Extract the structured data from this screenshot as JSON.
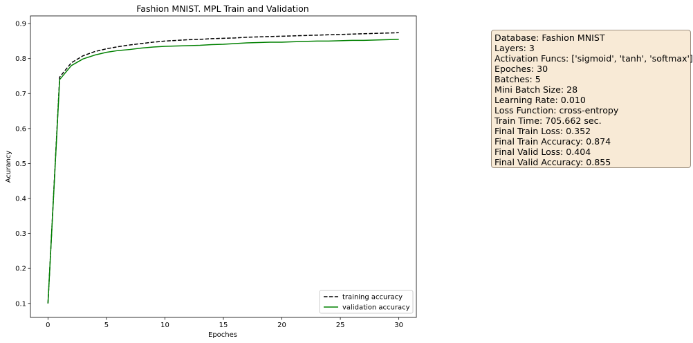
{
  "chart_data": {
    "type": "line",
    "title": "Fashion MNIST. MPL Train and Validation",
    "xlabel": "Epoches",
    "ylabel": "Acurancy",
    "xlim": [
      -1.5,
      31.5
    ],
    "ylim": [
      0.06,
      0.922
    ],
    "xticks": [
      0,
      5,
      10,
      15,
      20,
      25,
      30
    ],
    "yticks": [
      0.1,
      0.2,
      0.3,
      0.4,
      0.5,
      0.6,
      0.7,
      0.8,
      0.9
    ],
    "grid": false,
    "legend_position": "lower-right",
    "x": [
      0,
      1,
      2,
      3,
      4,
      5,
      6,
      7,
      8,
      9,
      10,
      11,
      12,
      13,
      14,
      15,
      16,
      17,
      18,
      19,
      20,
      21,
      22,
      23,
      24,
      25,
      26,
      27,
      28,
      29,
      30
    ],
    "series": [
      {
        "name": "training accuracy",
        "color": "#000000",
        "linestyle": "dashed",
        "values": [
          0.1,
          0.747,
          0.788,
          0.808,
          0.82,
          0.828,
          0.834,
          0.839,
          0.843,
          0.847,
          0.85,
          0.852,
          0.854,
          0.855,
          0.857,
          0.858,
          0.859,
          0.861,
          0.862,
          0.863,
          0.864,
          0.865,
          0.866,
          0.867,
          0.868,
          0.869,
          0.87,
          0.871,
          0.872,
          0.873,
          0.874
        ]
      },
      {
        "name": "validation accuracy",
        "color": "#008000",
        "linestyle": "solid",
        "values": [
          0.1,
          0.74,
          0.78,
          0.799,
          0.81,
          0.818,
          0.823,
          0.826,
          0.83,
          0.833,
          0.835,
          0.836,
          0.837,
          0.838,
          0.84,
          0.841,
          0.843,
          0.845,
          0.846,
          0.847,
          0.847,
          0.848,
          0.849,
          0.85,
          0.85,
          0.851,
          0.852,
          0.852,
          0.853,
          0.854,
          0.855
        ]
      }
    ]
  },
  "info_box": {
    "lines": [
      "Database: Fashion MNIST",
      "Layers: 3",
      "Activation Funcs: ['sigmoid', 'tanh', 'softmax']",
      "Epoches: 30",
      "Batches: 5",
      "Mini Batch Size: 28",
      "Learning Rate: 0.010",
      "Loss Function: cross-entropy",
      "Train Time: 705.662 sec.",
      "Final Train Loss: 0.352",
      "Final Train Accuracy: 0.874",
      "Final Valid Loss: 0.404",
      "Final Valid Accuracy: 0.855"
    ]
  }
}
